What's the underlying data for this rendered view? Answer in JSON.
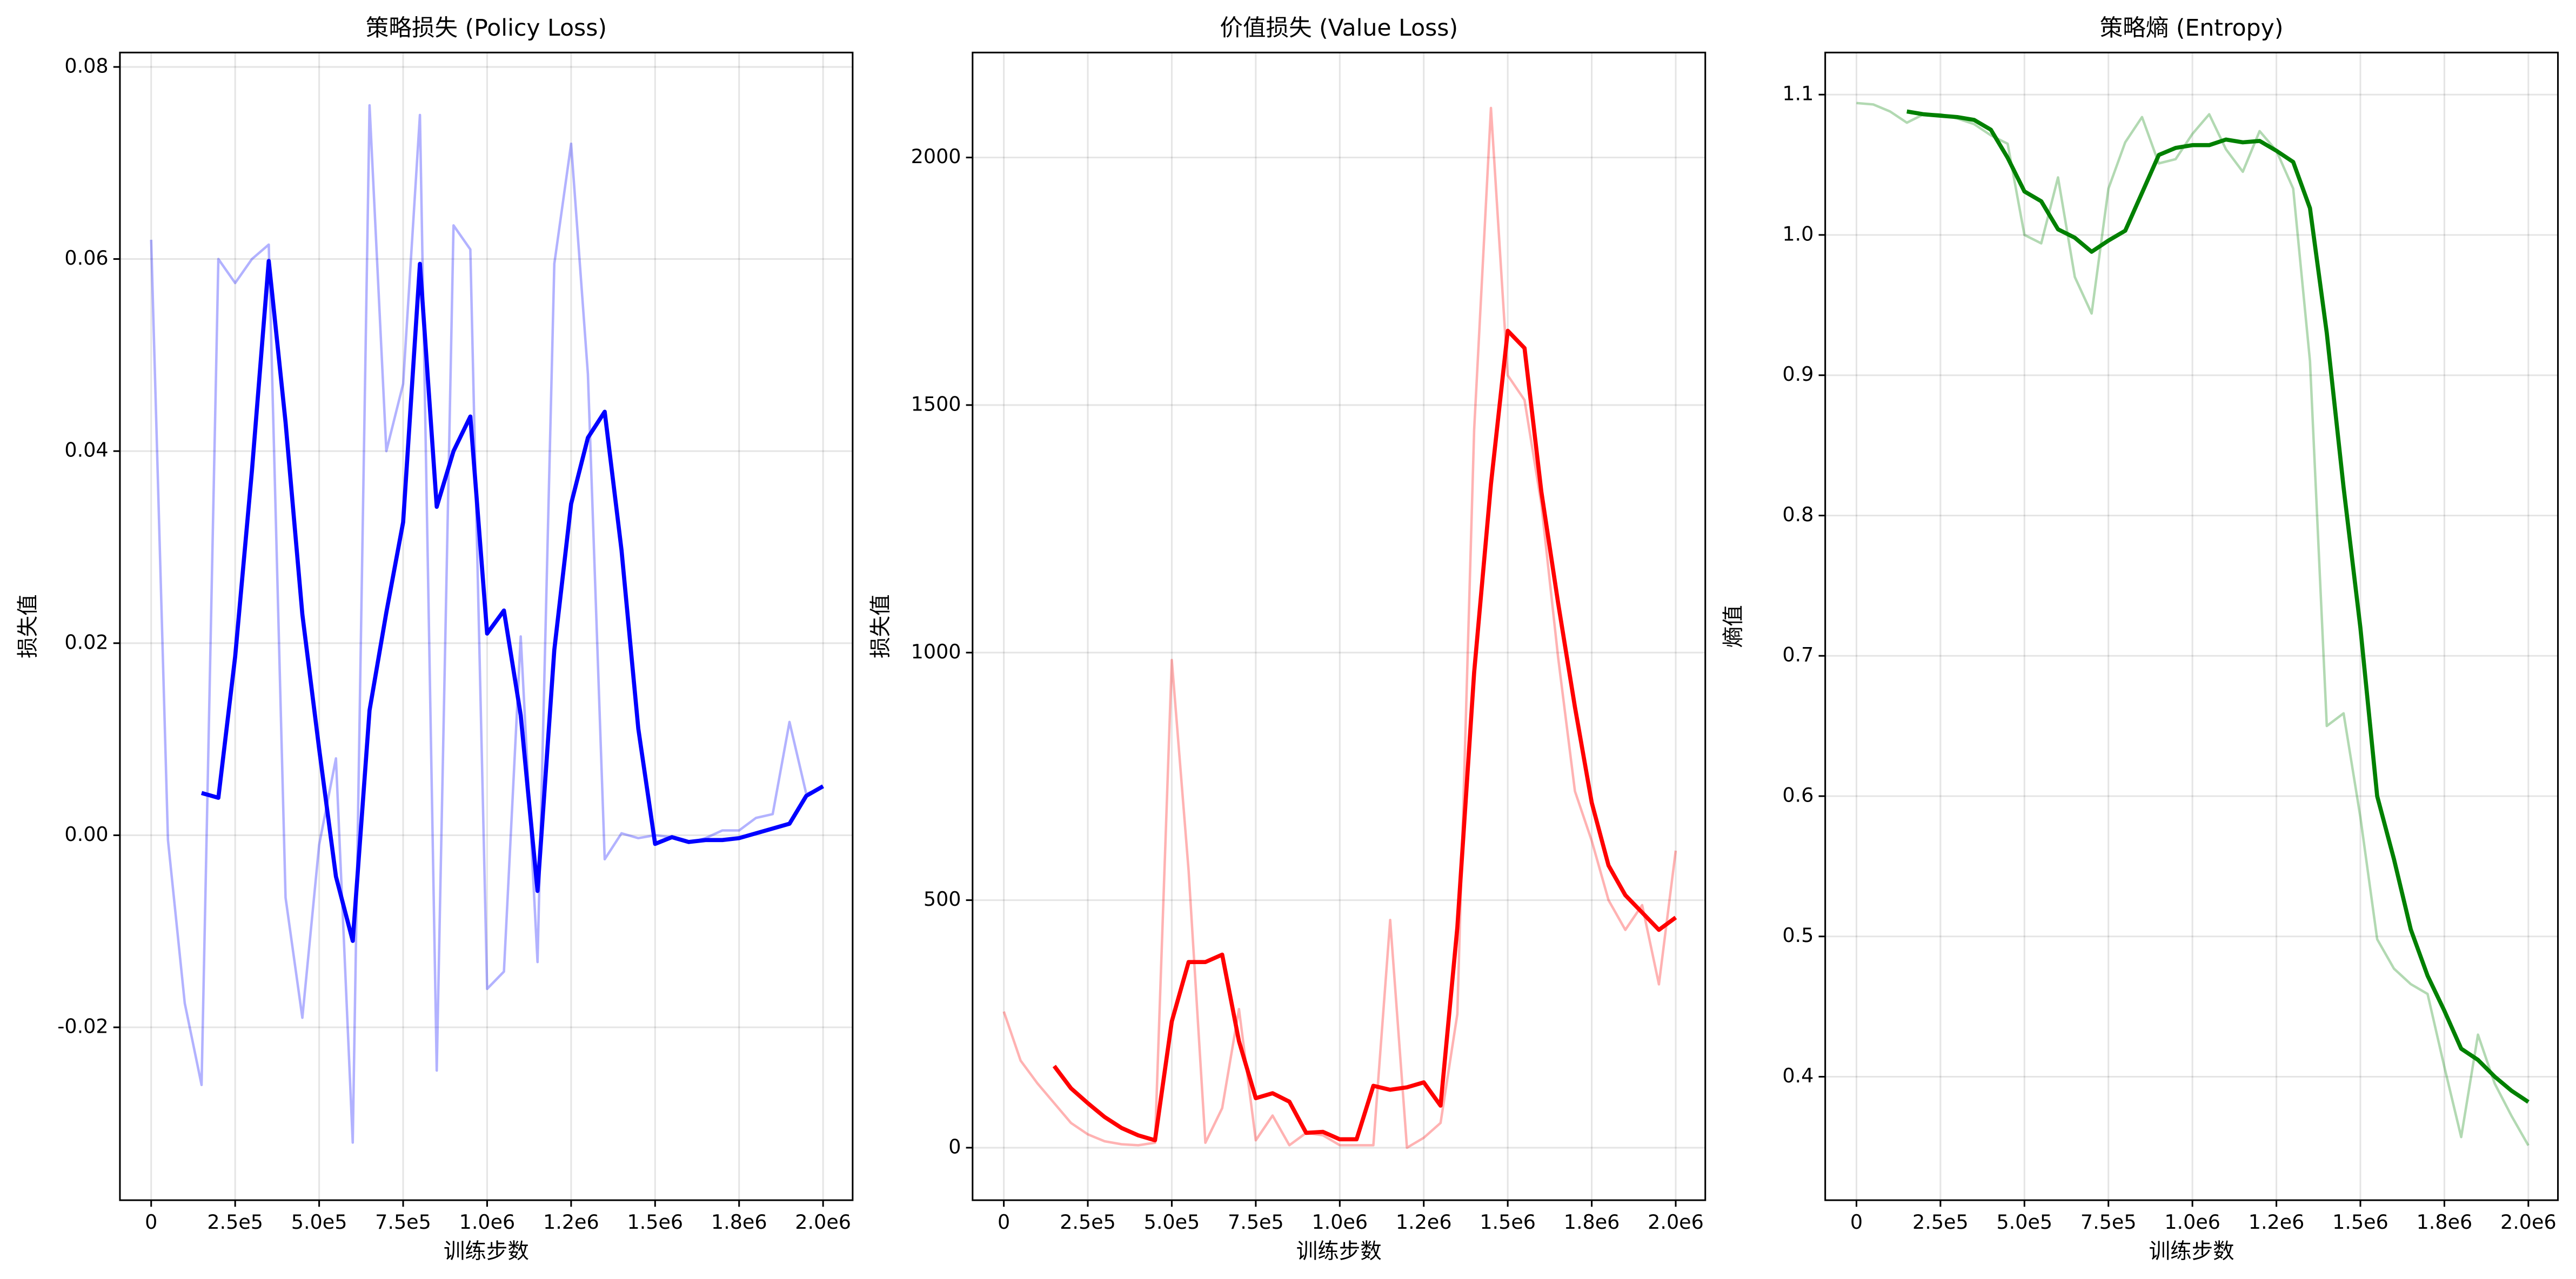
{
  "chart_data": [
    {
      "type": "line",
      "title": "策略损失 (Policy Loss)",
      "xlabel": "训练步数",
      "ylabel": "损失值",
      "xlim": [
        -93000,
        2088000
      ],
      "ylim": [
        -0.038,
        0.0815
      ],
      "grid": true,
      "xticks": [
        0,
        {
          "value": 250000,
          "label": "2.5e5"
        },
        {
          "value": 500000,
          "label": "5.0e5"
        },
        {
          "value": 750000,
          "label": "7.5e5"
        },
        {
          "value": 1000000,
          "label": "1.0e6"
        },
        {
          "value": 1250000,
          "label": "1.2e6"
        },
        {
          "value": 1500000,
          "label": "1.5e6"
        },
        {
          "value": 1750000,
          "label": "1.8e6"
        },
        {
          "value": 2000000,
          "label": "2.0e6"
        }
      ],
      "yticks": [
        -0.02,
        {
          "value": 0,
          "label": "0.00"
        },
        0.02,
        0.04,
        0.06,
        0.08
      ],
      "series": [
        {
          "color": "#0000ff",
          "alpha": 0.3,
          "linewidth": 1.5,
          "x": [
            0,
            50000,
            100000,
            150000,
            200000,
            250000,
            300000,
            350000,
            400000,
            450000,
            500000,
            550000,
            600000,
            650000,
            700000,
            750000,
            800000,
            850000,
            900000,
            950000,
            1000000,
            1050000,
            1100000,
            1150000,
            1200000,
            1250000,
            1300000,
            1350000,
            1400000,
            1450000,
            1500000,
            1550000,
            1600000,
            1650000,
            1700000,
            1750000,
            1800000,
            1850000,
            1900000,
            1950000,
            2000000
          ],
          "values": [
            0.062,
            -0.0005,
            -0.0175,
            -0.026,
            0.06,
            0.0575,
            0.06,
            0.0615,
            -0.0065,
            -0.019,
            -0.001,
            0.008,
            -0.032,
            0.076,
            0.04,
            0.047,
            0.075,
            -0.0245,
            0.0635,
            0.061,
            -0.016,
            -0.0142,
            0.0207,
            -0.0132,
            0.0595,
            0.072,
            0.048,
            -0.0025,
            0.0002,
            -0.0003,
            0,
            -0.0002,
            -0.0008,
            -0.0003,
            0.0005,
            0.0005,
            0.0018,
            0.0022,
            0.0118,
            0.0043,
            0.005
          ]
        },
        {
          "color": "#0000ff",
          "alpha": 1,
          "linewidth": 2.5,
          "x": [
            150000,
            200000,
            250000,
            300000,
            350000,
            400000,
            450000,
            500000,
            550000,
            600000,
            650000,
            700000,
            750000,
            800000,
            850000,
            900000,
            950000,
            1000000,
            1050000,
            1100000,
            1150000,
            1200000,
            1250000,
            1300000,
            1350000,
            1400000,
            1450000,
            1500000,
            1550000,
            1600000,
            1650000,
            1700000,
            1750000,
            1800000,
            1850000,
            1900000,
            1950000,
            2000000
          ],
          "values": [
            0.0044,
            0.0039,
            0.0186,
            0.038,
            0.0598,
            0.043,
            0.023,
            0.009,
            -0.0043,
            -0.011,
            0.013,
            0.0232,
            0.0326,
            0.0595,
            0.0342,
            0.04,
            0.0436,
            0.021,
            0.0234,
            0.0125,
            -0.0058,
            0.0193,
            0.0345,
            0.0414,
            0.0441,
            0.0297,
            0.0111,
            -0.0009,
            -0.0002,
            -0.0007,
            -0.0005,
            -0.0005,
            -0.0003,
            0.0002,
            0.0007,
            0.0012,
            0.0041,
            0.0051
          ]
        }
      ]
    },
    {
      "type": "line",
      "title": "价值损失 (Value Loss)",
      "xlabel": "训练步数",
      "ylabel": "损失值",
      "xlim": [
        -93000,
        2088000
      ],
      "ylim": [
        -106,
        2212
      ],
      "grid": true,
      "xticks": [
        0,
        {
          "value": 250000,
          "label": "2.5e5"
        },
        {
          "value": 500000,
          "label": "5.0e5"
        },
        {
          "value": 750000,
          "label": "7.5e5"
        },
        {
          "value": 1000000,
          "label": "1.0e6"
        },
        {
          "value": 1250000,
          "label": "1.2e6"
        },
        {
          "value": 1500000,
          "label": "1.5e6"
        },
        {
          "value": 1750000,
          "label": "1.8e6"
        },
        {
          "value": 2000000,
          "label": "2.0e6"
        }
      ],
      "yticks": [
        0,
        500,
        1000,
        1500,
        2000
      ],
      "series": [
        {
          "color": "#ff0000",
          "alpha": 0.3,
          "linewidth": 1.5,
          "x": [
            0,
            50000,
            100000,
            150000,
            200000,
            250000,
            300000,
            350000,
            400000,
            450000,
            500000,
            550000,
            600000,
            650000,
            700000,
            750000,
            800000,
            850000,
            900000,
            950000,
            1000000,
            1050000,
            1100000,
            1150000,
            1200000,
            1250000,
            1300000,
            1350000,
            1400000,
            1450000,
            1500000,
            1550000,
            1600000,
            1650000,
            1700000,
            1750000,
            1800000,
            1850000,
            1900000,
            1950000,
            2000000
          ],
          "values": [
            275,
            176,
            130,
            90,
            50,
            27,
            13,
            7,
            5,
            10,
            985,
            560,
            10,
            80,
            280,
            15,
            65,
            5,
            30,
            25,
            5,
            5,
            5,
            460,
            0,
            20,
            50,
            270,
            1450,
            2100,
            1560,
            1510,
            1300,
            990,
            720,
            620,
            500,
            440,
            490,
            330,
            600
          ]
        },
        {
          "color": "#ff0000",
          "alpha": 1,
          "linewidth": 2.5,
          "x": [
            150000,
            200000,
            250000,
            300000,
            350000,
            400000,
            450000,
            500000,
            550000,
            600000,
            650000,
            700000,
            750000,
            800000,
            850000,
            900000,
            950000,
            1000000,
            1050000,
            1100000,
            1150000,
            1200000,
            1250000,
            1300000,
            1350000,
            1400000,
            1450000,
            1500000,
            1550000,
            1600000,
            1650000,
            1700000,
            1750000,
            1800000,
            1850000,
            1900000,
            1950000,
            2000000
          ],
          "values": [
            165,
            120,
            90,
            62,
            40,
            25,
            15,
            255,
            375,
            375,
            390,
            215,
            100,
            110,
            93,
            30,
            32,
            17,
            17,
            125,
            117,
            122,
            132,
            85,
            445,
            960,
            1340,
            1650,
            1615,
            1325,
            1100,
            890,
            697,
            570,
            510,
            475,
            440,
            465
          ]
        }
      ]
    },
    {
      "type": "line",
      "title": "策略熵 (Entropy)",
      "xlabel": "训练步数",
      "ylabel": "熵值",
      "xlim": [
        -93000,
        2088000
      ],
      "ylim": [
        0.312,
        1.13
      ],
      "grid": true,
      "xticks": [
        0,
        {
          "value": 250000,
          "label": "2.5e5"
        },
        {
          "value": 500000,
          "label": "5.0e5"
        },
        {
          "value": 750000,
          "label": "7.5e5"
        },
        {
          "value": 1000000,
          "label": "1.0e6"
        },
        {
          "value": 1250000,
          "label": "1.2e6"
        },
        {
          "value": 1500000,
          "label": "1.5e6"
        },
        {
          "value": 1750000,
          "label": "1.8e6"
        },
        {
          "value": 2000000,
          "label": "2.0e6"
        }
      ],
      "yticks": [
        0.4,
        0.5,
        0.6,
        0.7,
        0.8,
        0.9,
        {
          "value": 1,
          "label": "1.0"
        },
        1.1
      ],
      "series": [
        {
          "color": "#008000",
          "alpha": 0.3,
          "linewidth": 1.5,
          "x": [
            0,
            50000,
            100000,
            150000,
            200000,
            250000,
            300000,
            350000,
            400000,
            450000,
            500000,
            550000,
            600000,
            650000,
            700000,
            750000,
            800000,
            850000,
            900000,
            950000,
            1000000,
            1050000,
            1100000,
            1150000,
            1200000,
            1250000,
            1300000,
            1350000,
            1400000,
            1450000,
            1500000,
            1550000,
            1600000,
            1650000,
            1700000,
            1750000,
            1800000,
            1850000,
            1900000,
            1950000,
            2000000
          ],
          "values": [
            1.094,
            1.093,
            1.088,
            1.08,
            1.086,
            1.086,
            1.083,
            1.079,
            1.071,
            1.065,
            1.0,
            0.994,
            1.041,
            0.97,
            0.944,
            1.033,
            1.066,
            1.084,
            1.051,
            1.054,
            1.072,
            1.086,
            1.061,
            1.045,
            1.074,
            1.06,
            1.033,
            0.91,
            0.65,
            0.659,
            0.585,
            0.498,
            0.477,
            0.466,
            0.459,
            0.407,
            0.357,
            0.43,
            0.395,
            0.372,
            0.351
          ]
        },
        {
          "color": "#008000",
          "alpha": 1,
          "linewidth": 2.5,
          "x": [
            150000,
            200000,
            250000,
            300000,
            350000,
            400000,
            450000,
            500000,
            550000,
            600000,
            650000,
            700000,
            750000,
            800000,
            850000,
            900000,
            950000,
            1000000,
            1050000,
            1100000,
            1150000,
            1200000,
            1250000,
            1300000,
            1350000,
            1400000,
            1450000,
            1500000,
            1550000,
            1600000,
            1650000,
            1700000,
            1750000,
            1800000,
            1850000,
            1900000,
            1950000,
            2000000
          ],
          "values": [
            1.088,
            1.086,
            1.085,
            1.084,
            1.082,
            1.075,
            1.055,
            1.031,
            1.024,
            1.004,
            0.998,
            0.988,
            0.996,
            1.003,
            1.03,
            1.057,
            1.062,
            1.064,
            1.064,
            1.068,
            1.066,
            1.067,
            1.06,
            1.052,
            1.019,
            0.93,
            0.82,
            0.72,
            0.6,
            0.555,
            0.505,
            0.472,
            0.447,
            0.42,
            0.412,
            0.4,
            0.39,
            0.382
          ]
        }
      ]
    }
  ]
}
